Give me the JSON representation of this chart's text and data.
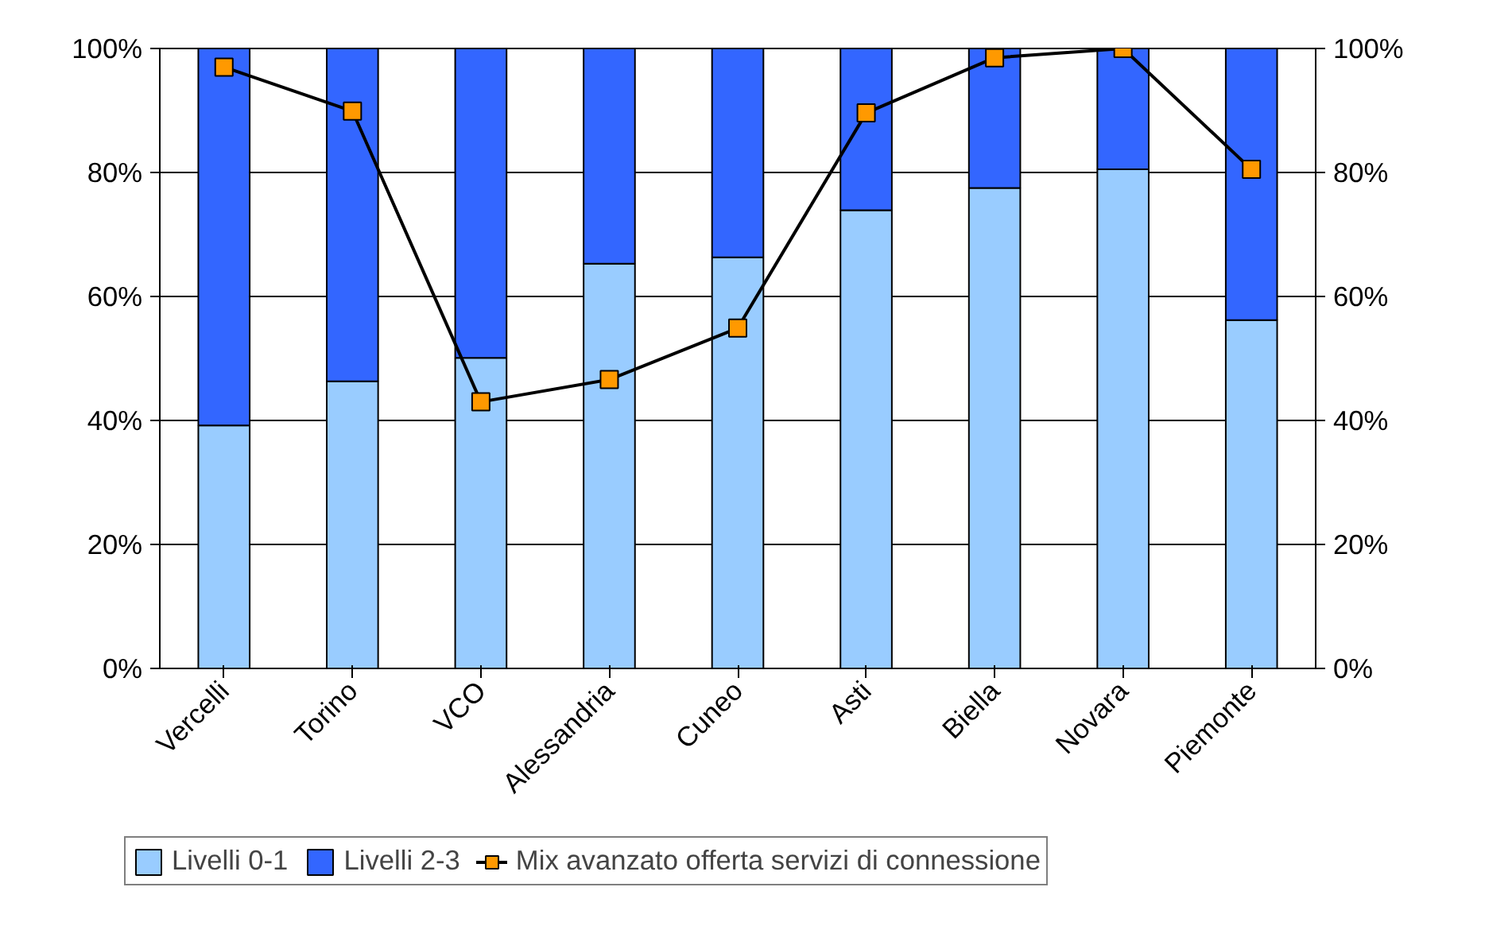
{
  "chart_data": {
    "type": "bar",
    "stacked": true,
    "categories": [
      "Vercelli",
      "Torino",
      "VCO",
      "Alessandria",
      "Cuneo",
      "Asti",
      "Biella",
      "Novara",
      "Piemonte"
    ],
    "series": [
      {
        "name": "Livelli 0-1",
        "color": "#99ccff",
        "values": [
          39.2,
          46.3,
          50.1,
          65.3,
          66.3,
          73.9,
          77.5,
          80.5,
          56.2
        ]
      },
      {
        "name": "Livelli 2-3",
        "color": "#3366ff",
        "values": [
          60.8,
          53.7,
          49.9,
          34.7,
          33.7,
          26.1,
          22.5,
          19.5,
          43.8
        ]
      },
      {
        "name": "Mix avanzato offerta servizi di connessione",
        "type": "line",
        "axis": "y2",
        "color": "#000000",
        "marker": "square",
        "values": [
          97.0,
          89.9,
          43.0,
          46.6,
          54.9,
          89.6,
          98.5,
          100,
          80.5
        ]
      }
    ],
    "ylim": [
      0,
      100
    ],
    "yticks": [
      {
        "value": 0,
        "label": "0%"
      },
      {
        "value": 20,
        "label": "20%"
      },
      {
        "value": 40,
        "label": "40%"
      },
      {
        "value": 60,
        "label": "60%"
      },
      {
        "value": 80,
        "label": "80%"
      },
      {
        "value": 100,
        "label": "100%"
      }
    ],
    "y2lim": [
      0,
      100
    ],
    "y2ticks": [
      {
        "value": 0,
        "label": "0%"
      },
      {
        "value": 20,
        "label": "20%"
      },
      {
        "value": 40,
        "label": "40%"
      },
      {
        "value": 60,
        "label": "60%"
      },
      {
        "value": 80,
        "label": "80%"
      },
      {
        "value": 100,
        "label": "100%"
      }
    ],
    "grid": "y",
    "legend": "bottom"
  }
}
